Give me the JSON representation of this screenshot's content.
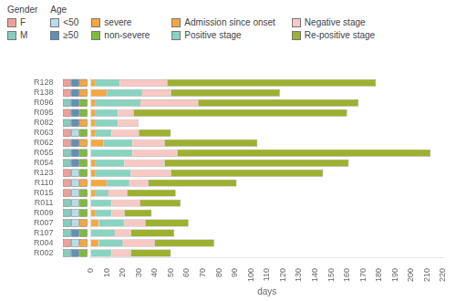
{
  "chart_data": {
    "type": "bar",
    "orientation": "horizontal",
    "stacked": true,
    "grid": false,
    "categories": [
      "R128",
      "R138",
      "R096",
      "R095",
      "R082",
      "R063",
      "R062",
      "R055",
      "R054",
      "R123",
      "R110",
      "R015",
      "R011",
      "R009",
      "R007",
      "R107",
      "R004",
      "R002"
    ],
    "series": [
      {
        "name": "Admission since onset",
        "color": "#f5a742",
        "values": [
          3,
          10,
          3,
          3,
          3,
          3,
          8,
          0,
          3,
          3,
          10,
          3,
          0,
          3,
          5,
          0,
          5,
          0
        ]
      },
      {
        "name": "Positive stage",
        "color": "#88d4c0",
        "values": [
          15,
          22,
          28,
          14,
          14,
          10,
          18,
          26,
          18,
          22,
          14,
          8,
          13,
          10,
          16,
          15,
          15,
          13
        ]
      },
      {
        "name": "Negative stage",
        "color": "#f8c8c4",
        "values": [
          30,
          18,
          36,
          10,
          13,
          17,
          20,
          28,
          25,
          25,
          12,
          12,
          18,
          8,
          13,
          10,
          20,
          12
        ]
      },
      {
        "name": "Re-positive stage",
        "color": "#9eb030",
        "values": [
          130,
          68,
          100,
          133,
          0,
          20,
          58,
          158,
          115,
          95,
          55,
          30,
          25,
          17,
          27,
          27,
          37,
          25
        ]
      }
    ],
    "xlabel": "days",
    "xlim": [
      0,
      220
    ],
    "xticks": [
      0,
      10,
      20,
      30,
      40,
      50,
      60,
      70,
      80,
      90,
      100,
      110,
      120,
      130,
      140,
      150,
      160,
      170,
      180,
      190,
      200,
      210,
      220
    ],
    "attributes": [
      {
        "title": "Gender",
        "colors": {
          "F": "#f0a09a",
          "M": "#88ccbe"
        },
        "values": [
          "F",
          "F",
          "M",
          "F",
          "M",
          "F",
          "F",
          "M",
          "M",
          "F",
          "F",
          "F",
          "M",
          "M",
          "M",
          "M",
          "F",
          "M"
        ]
      },
      {
        "title": "Age",
        "colors": {
          "<50": "#b8dce8",
          "≥50": "#6090b8"
        },
        "values": [
          "≥50",
          "≥50",
          "≥50",
          "≥50",
          "≥50",
          "<50",
          "≥50",
          "≥50",
          "≥50",
          "<50",
          "<50",
          "<50",
          "<50",
          "<50",
          "<50",
          "≥50",
          "<50",
          "≥50"
        ]
      },
      {
        "colors": {
          "severe": "#f5a742",
          "non-severe": "#7fba3c"
        },
        "values": [
          "severe",
          "severe",
          "non-severe",
          "non-severe",
          "severe",
          "non-severe",
          "severe",
          "non-severe",
          "non-severe",
          "non-severe",
          "severe",
          "non-severe",
          "non-severe",
          "non-severe",
          "severe",
          "non-severe",
          "severe",
          "non-severe"
        ]
      }
    ]
  }
}
